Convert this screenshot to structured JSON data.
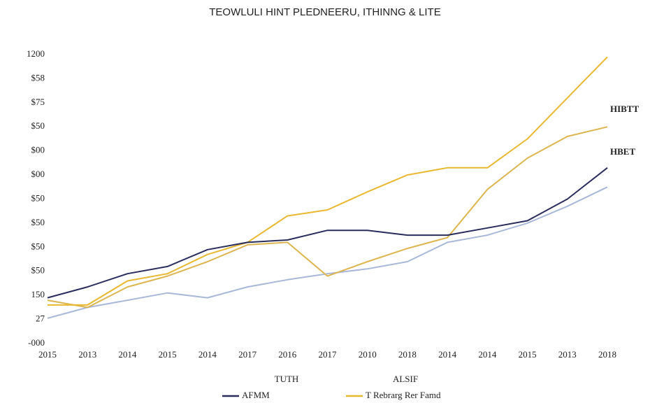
{
  "chart_data": {
    "type": "line",
    "title": "TEOWLULI HINT PLEDNEERU, ITHINNG & LITE",
    "categories": [
      "2015",
      "2013",
      "2014",
      "2015",
      "2014",
      "2017",
      "2016",
      "2017",
      "2010",
      "2018",
      "2014",
      "2014",
      "2015",
      "2013",
      "2018"
    ],
    "ylim": [
      0,
      12
    ],
    "yticks": [
      {
        "value": 0,
        "label": "-000"
      },
      {
        "value": 1,
        "label": "27"
      },
      {
        "value": 2,
        "label": "150"
      },
      {
        "value": 3,
        "label": "$50"
      },
      {
        "value": 4,
        "label": "$50"
      },
      {
        "value": 5,
        "label": "$50"
      },
      {
        "value": 6,
        "label": "$50"
      },
      {
        "value": 7,
        "label": "$00"
      },
      {
        "value": 8,
        "label": "$00"
      },
      {
        "value": 9,
        "label": "$50"
      },
      {
        "value": 10,
        "label": "$75"
      },
      {
        "value": 11,
        "label": "$58"
      },
      {
        "value": 12,
        "label": "1200"
      }
    ],
    "x_labels": [
      "TUTH",
      "ALSIF"
    ],
    "annotations": [
      {
        "text": "HIBTT",
        "color": "#e0ad2c"
      },
      {
        "text": "HBET",
        "color": "#2a2d5c"
      }
    ],
    "series": [
      {
        "name": "AFMM",
        "color": "#2a2d5c",
        "values": [
          1.9,
          2.35,
          2.9,
          3.2,
          3.9,
          4.2,
          4.3,
          4.7,
          4.7,
          4.5,
          4.5,
          4.8,
          5.1,
          6.0,
          7.3
        ]
      },
      {
        "name": "T Rebrarg Rer Famd",
        "color": "#e8b830",
        "values": [
          1.6,
          1.6,
          2.6,
          2.9,
          3.7,
          4.2,
          5.3,
          5.55,
          6.3,
          7.0,
          7.3,
          7.3,
          8.5,
          10.2,
          11.9
        ]
      },
      {
        "color": "#dcb550",
        "values": [
          1.8,
          1.5,
          2.35,
          2.8,
          3.4,
          4.1,
          4.2,
          2.8,
          3.4,
          3.95,
          4.4,
          6.4,
          7.7,
          8.6,
          9.0
        ]
      },
      {
        "color": "#a9b8d8",
        "values": [
          1.05,
          1.5,
          1.8,
          2.1,
          1.9,
          2.35,
          2.65,
          2.9,
          3.1,
          3.4,
          4.2,
          4.5,
          5.0,
          5.7,
          6.5
        ]
      }
    ]
  }
}
